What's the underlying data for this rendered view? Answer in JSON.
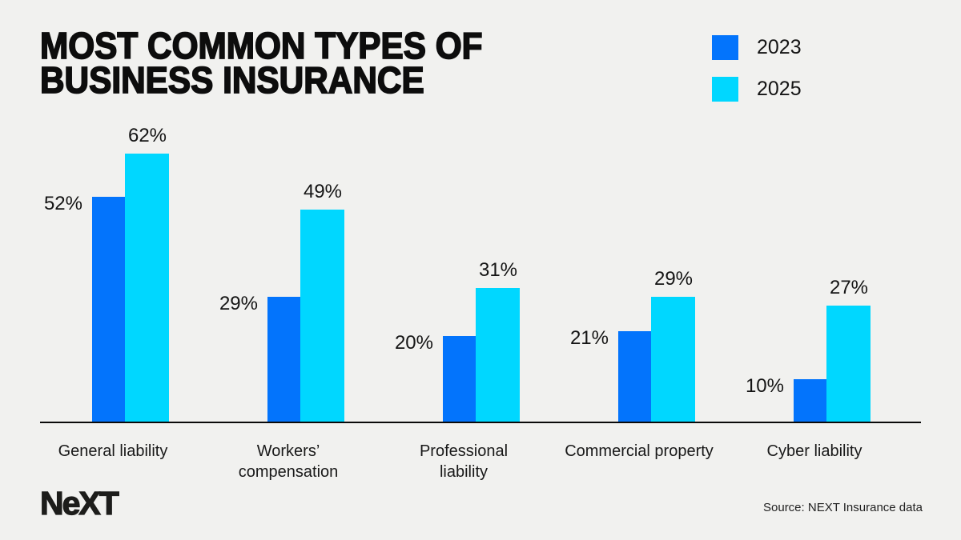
{
  "title": {
    "line1": "MOST COMMON TYPES OF",
    "line2": "BUSINESS INSURANCE"
  },
  "chart_data": {
    "type": "bar",
    "categories": [
      "General liability",
      "Workers’ compensation",
      "Professional liability",
      "Commercial property",
      "Cyber liability"
    ],
    "category_lines": [
      [
        "General liability"
      ],
      [
        "Workers’",
        "compensation"
      ],
      [
        "Professional",
        "liability"
      ],
      [
        "Commercial property"
      ],
      [
        "Cyber liability"
      ]
    ],
    "series": [
      {
        "name": "2023",
        "color": "#0374FC",
        "values": [
          52,
          29,
          20,
          21,
          10
        ]
      },
      {
        "name": "2025",
        "color": "#00D7FF",
        "values": [
          62,
          49,
          31,
          29,
          27
        ]
      }
    ],
    "value_suffix": "%",
    "ylim": [
      0,
      65
    ],
    "grid": false,
    "legend_position": "top-right",
    "background_color": "#f1f1ef",
    "axis_color": "#0a0a0a",
    "label_color": "#141414"
  },
  "footer": {
    "logo_text": "NeXT",
    "source": "Source: NEXT Insurance data"
  }
}
